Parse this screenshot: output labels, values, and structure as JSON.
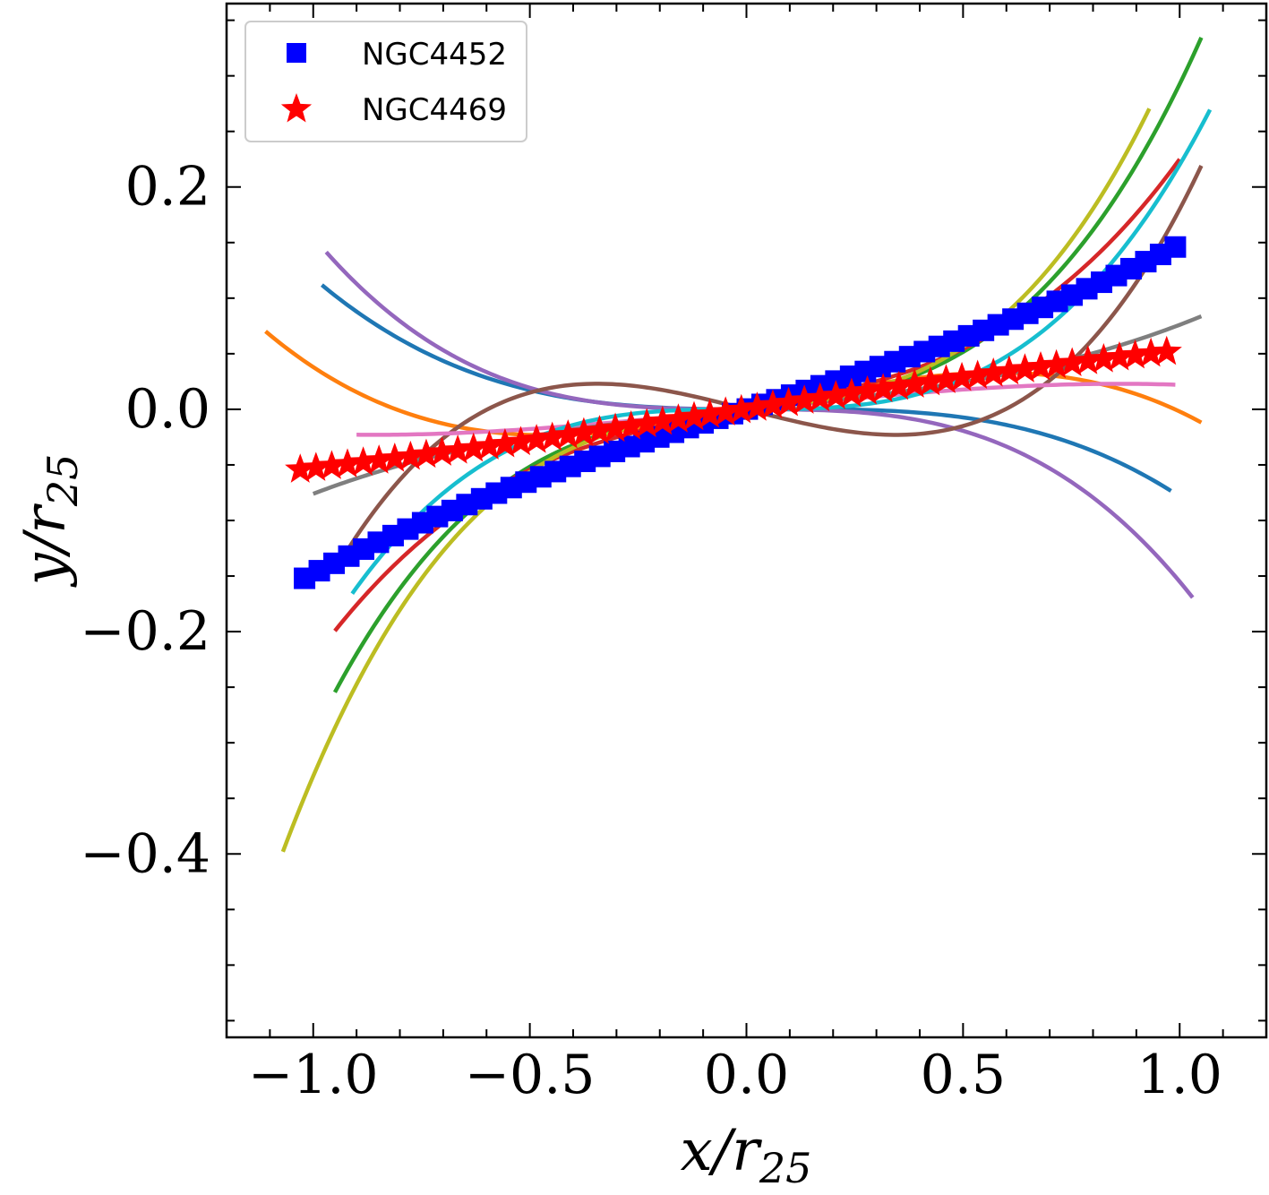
{
  "chart_data": {
    "type": "line",
    "xlabel": "x/r25",
    "ylabel": "y/r25",
    "xlabel_parts": {
      "main": "x/r",
      "sub": "25"
    },
    "ylabel_parts": {
      "main": "y/r",
      "sub": "25"
    },
    "xlim": [
      -1.2,
      1.2
    ],
    "ylim": [
      -0.565,
      0.365
    ],
    "xticks": [
      -1.0,
      -0.5,
      0.0,
      0.5,
      1.0
    ],
    "xtick_labels": [
      "−1.0",
      "−0.5",
      "0.0",
      "0.5",
      "1.0"
    ],
    "yticks": [
      -0.4,
      -0.2,
      0.0,
      0.2
    ],
    "ytick_labels": [
      "−0.4",
      "−0.2",
      "0.0",
      "0.2"
    ],
    "legend": {
      "position": "top-left",
      "entries": [
        {
          "label": "NGC4452",
          "color": "#0000ff",
          "marker": "square"
        },
        {
          "label": "NGC4469",
          "color": "#ff0000",
          "marker": "star"
        }
      ]
    },
    "model_curves": [
      {
        "name": "C0",
        "color": "#1f77b4",
        "x_range": [
          -0.98,
          0.98
        ],
        "coeffs": [
          0.0,
          0.0,
          0.02,
          -0.0984
        ]
      },
      {
        "name": "C1",
        "color": "#ff7f0e",
        "x_range": [
          -1.11,
          1.05
        ],
        "coeffs": [
          0.0,
          0.08,
          0.018,
          -0.1
        ]
      },
      {
        "name": "C2",
        "color": "#2ca02c",
        "x_range": [
          -0.95,
          1.05
        ],
        "coeffs": [
          0.0,
          0.04,
          0.0,
          0.2526
        ]
      },
      {
        "name": "C3",
        "color": "#d62728",
        "x_range": [
          -0.95,
          1.0
        ],
        "coeffs": [
          0.0,
          0.07,
          0.0,
          0.155
        ]
      },
      {
        "name": "C4",
        "color": "#9467bd",
        "x_range": [
          -0.97,
          1.03
        ],
        "coeffs": [
          0.0,
          0.0,
          0.0,
          -0.155
        ]
      },
      {
        "name": "C5",
        "color": "#8c564b",
        "x_range": [
          -0.95,
          1.05
        ],
        "coeffs": [
          0.0,
          -0.1,
          0.0,
          0.28
        ]
      },
      {
        "name": "C6",
        "color": "#e377c2",
        "x_range": [
          -0.9,
          0.99
        ],
        "coeffs": [
          0.0,
          0.04,
          0.0,
          -0.018
        ]
      },
      {
        "name": "C7",
        "color": "#7f7f7f",
        "x_range": [
          -1.0,
          1.05
        ],
        "coeffs": [
          0.0,
          0.04,
          0.0,
          0.036
        ]
      },
      {
        "name": "C8",
        "color": "#bcbd22",
        "x_range": [
          -1.07,
          0.93
        ],
        "coeffs": [
          0.0,
          0.04,
          0.0,
          0.29
        ]
      },
      {
        "name": "C9",
        "color": "#17becf",
        "x_range": [
          -0.91,
          1.07
        ],
        "coeffs": [
          0.0,
          0.0,
          0.0,
          0.22
        ]
      }
    ],
    "series": [
      {
        "name": "NGC4452",
        "color": "#0000ff",
        "marker": "square",
        "x_range": [
          -1.02,
          0.99
        ],
        "n_points": 60,
        "coeffs": [
          0.0,
          0.122,
          0.0,
          0.026
        ]
      },
      {
        "name": "NGC4469",
        "color": "#ff0000",
        "marker": "star",
        "x_range": [
          -1.03,
          0.97
        ],
        "n_points": 56,
        "coeffs": [
          0.0,
          0.058,
          0.0,
          -0.005
        ]
      }
    ]
  }
}
